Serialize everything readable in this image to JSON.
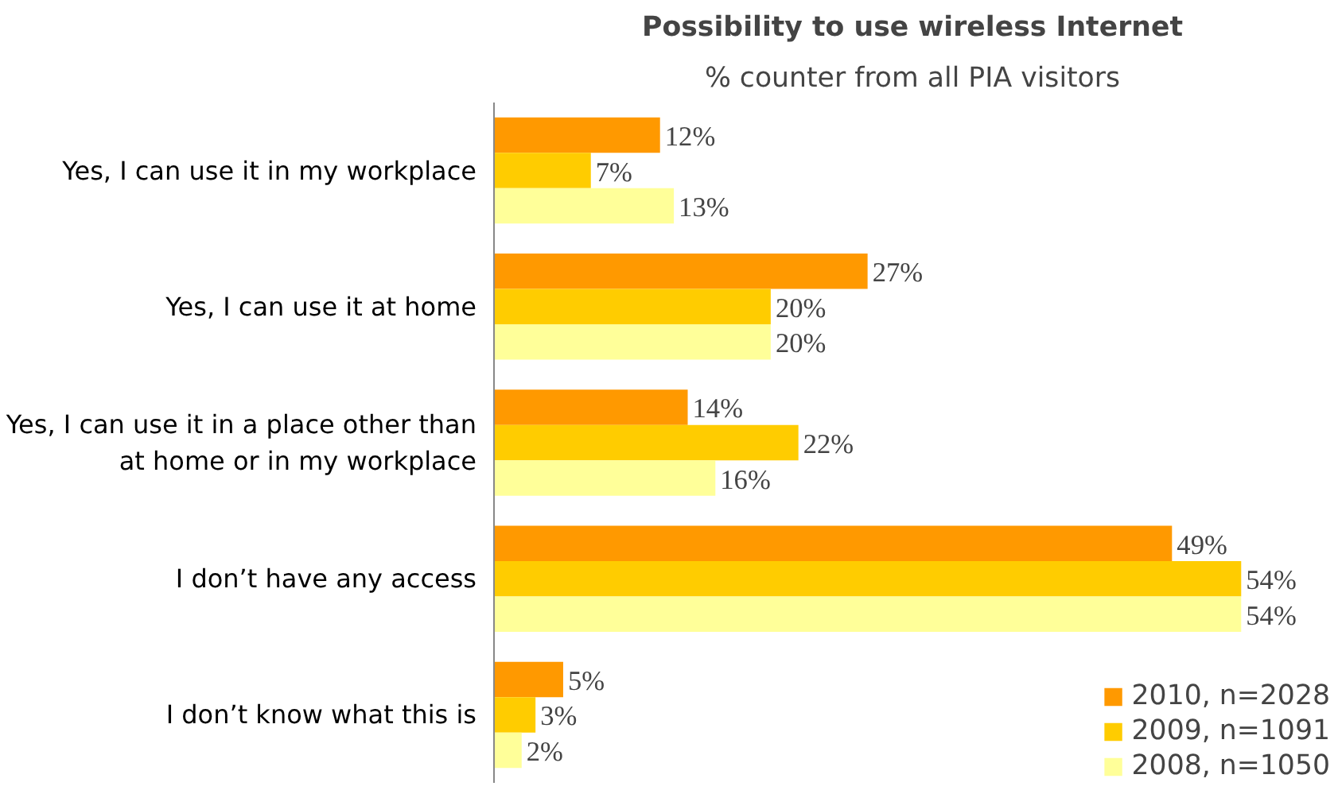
{
  "chart_data": {
    "type": "bar",
    "orientation": "horizontal",
    "title": "Possibility to use wireless Internet",
    "subtitle": "% counter from all PIA visitors",
    "categories": [
      "Yes, I can use it in my workplace",
      "Yes, I can use it at home",
      "Yes, I can use it in a place other than at home or in my workplace",
      "I don’t have any access",
      "I don’t know what this is"
    ],
    "series": [
      {
        "name": "2010, n=2028",
        "color": "#ff9900",
        "values": [
          12,
          27,
          14,
          49,
          5
        ],
        "value_labels": [
          "12%",
          "27%",
          "14%",
          "49%",
          "5%"
        ]
      },
      {
        "name": "2009, n=1091",
        "color": "#ffcc00",
        "values": [
          7,
          20,
          22,
          54,
          3
        ],
        "value_labels": [
          "7%",
          "20%",
          "22%",
          "54%",
          "3%"
        ]
      },
      {
        "name": "2008, n=1050",
        "color": "#ffff99",
        "values": [
          13,
          20,
          16,
          54,
          2
        ],
        "value_labels": [
          "13%",
          "20%",
          "16%",
          "54%",
          "2%"
        ]
      }
    ],
    "legend": "bottom right",
    "grid": false
  }
}
